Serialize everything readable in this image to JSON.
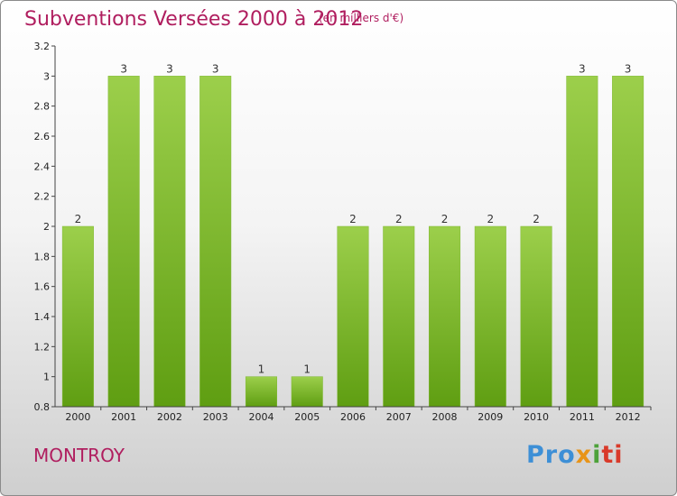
{
  "title": "Subventions Versées 2000 à 2012",
  "subtitle": "(en milliers d'€)",
  "commune": "MONTROY",
  "logo": {
    "p1": "Pro",
    "p2": "x",
    "p3": "i",
    "p4": "ti"
  },
  "colors": {
    "bar_top": "#9ccf4b",
    "bar_bottom": "#5f9e12",
    "title": "#b01e5f"
  },
  "chart_data": {
    "type": "bar",
    "categories": [
      "2000",
      "2001",
      "2002",
      "2003",
      "2004",
      "2005",
      "2006",
      "2007",
      "2008",
      "2009",
      "2010",
      "2011",
      "2012"
    ],
    "values": [
      2,
      3,
      3,
      3,
      1,
      1,
      2,
      2,
      2,
      2,
      2,
      3,
      3
    ],
    "data_labels": [
      "2",
      "3",
      "3",
      "3",
      "1",
      "1",
      "2",
      "2",
      "2",
      "2",
      "2",
      "3",
      "3"
    ],
    "ylim": [
      0.8,
      3.2
    ],
    "yticks": [
      0.8,
      1,
      1.2,
      1.4,
      1.6,
      1.8,
      2,
      2.2,
      2.4,
      2.6,
      2.8,
      3,
      3.2
    ],
    "ytick_labels": [
      "0.8",
      "1",
      "1.2",
      "1.4",
      "1.6",
      "1.8",
      "2",
      "2.2",
      "2.4",
      "2.6",
      "2.8",
      "3",
      "3.2"
    ],
    "grid": false
  }
}
